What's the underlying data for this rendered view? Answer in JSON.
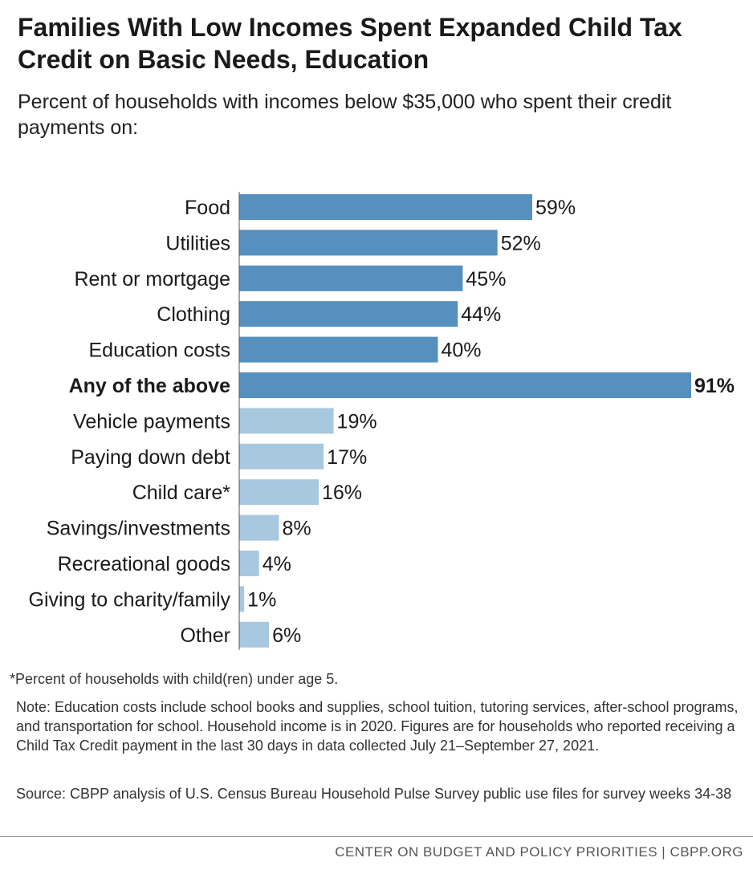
{
  "title": "Families With Low Incomes Spent Expanded Child Tax Credit on Basic Needs, Education",
  "subtitle": "Percent of households with incomes below $35,000 who spent their credit payments on:",
  "footnote": "*Percent of households with child(ren) under age 5.",
  "note": "Note: Education costs include school books and supplies, school tuition, tutoring services, after-school programs, and transportation for school. Household income is in 2020. Figures are for households who reported receiving a Child Tax Credit payment in the last 30 days in data collected July 21–September 27, 2021.",
  "source": "Source: CBPP analysis of U.S. Census Bureau Household Pulse Survey public use files for survey weeks 34-38",
  "credit": "CENTER ON BUDGET AND POLICY PRIORITIES | CBPP.ORG",
  "colors": {
    "dark": "#5590be",
    "light": "#a8c8e0",
    "text": "#1a1a1a"
  },
  "chart_data": {
    "type": "bar",
    "orientation": "horizontal",
    "title": "Families With Low Incomes Spent Expanded Child Tax Credit on Basic Needs, Education",
    "subtitle": "Percent of households with incomes below $35,000 who spent their credit payments on:",
    "xlabel": "",
    "ylabel": "",
    "xlim": [
      0,
      91
    ],
    "grid": false,
    "unit": "%",
    "categories": [
      "Food",
      "Utilities",
      "Rent or mortgage",
      "Clothing",
      "Education costs",
      "Any of the above",
      "Vehicle payments",
      "Paying down debt",
      "Child care*",
      "Savings/investments",
      "Recreational goods",
      "Giving to charity/family",
      "Other"
    ],
    "values": [
      59,
      52,
      45,
      44,
      40,
      91,
      19,
      17,
      16,
      8,
      4,
      1,
      6
    ],
    "labels": [
      "59%",
      "52%",
      "45%",
      "44%",
      "40%",
      "91%",
      "19%",
      "17%",
      "16%",
      "8%",
      "4%",
      "1%",
      "6%"
    ],
    "group": [
      "basic",
      "basic",
      "basic",
      "basic",
      "basic",
      "total",
      "other",
      "other",
      "other",
      "other",
      "other",
      "other",
      "other"
    ]
  }
}
